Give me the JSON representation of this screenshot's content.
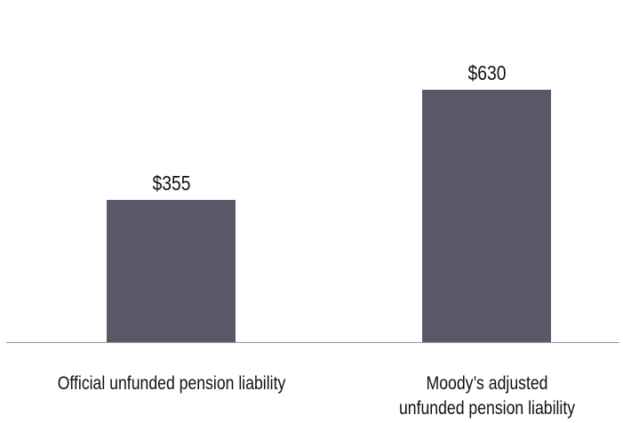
{
  "chart_data": {
    "type": "bar",
    "categories": [
      "Official unfunded pension liability",
      "Moody’s adjusted\nunfunded pension liability"
    ],
    "values": [
      355,
      630
    ],
    "value_labels": [
      "$355",
      "$630"
    ],
    "color": "#5b5769"
  }
}
